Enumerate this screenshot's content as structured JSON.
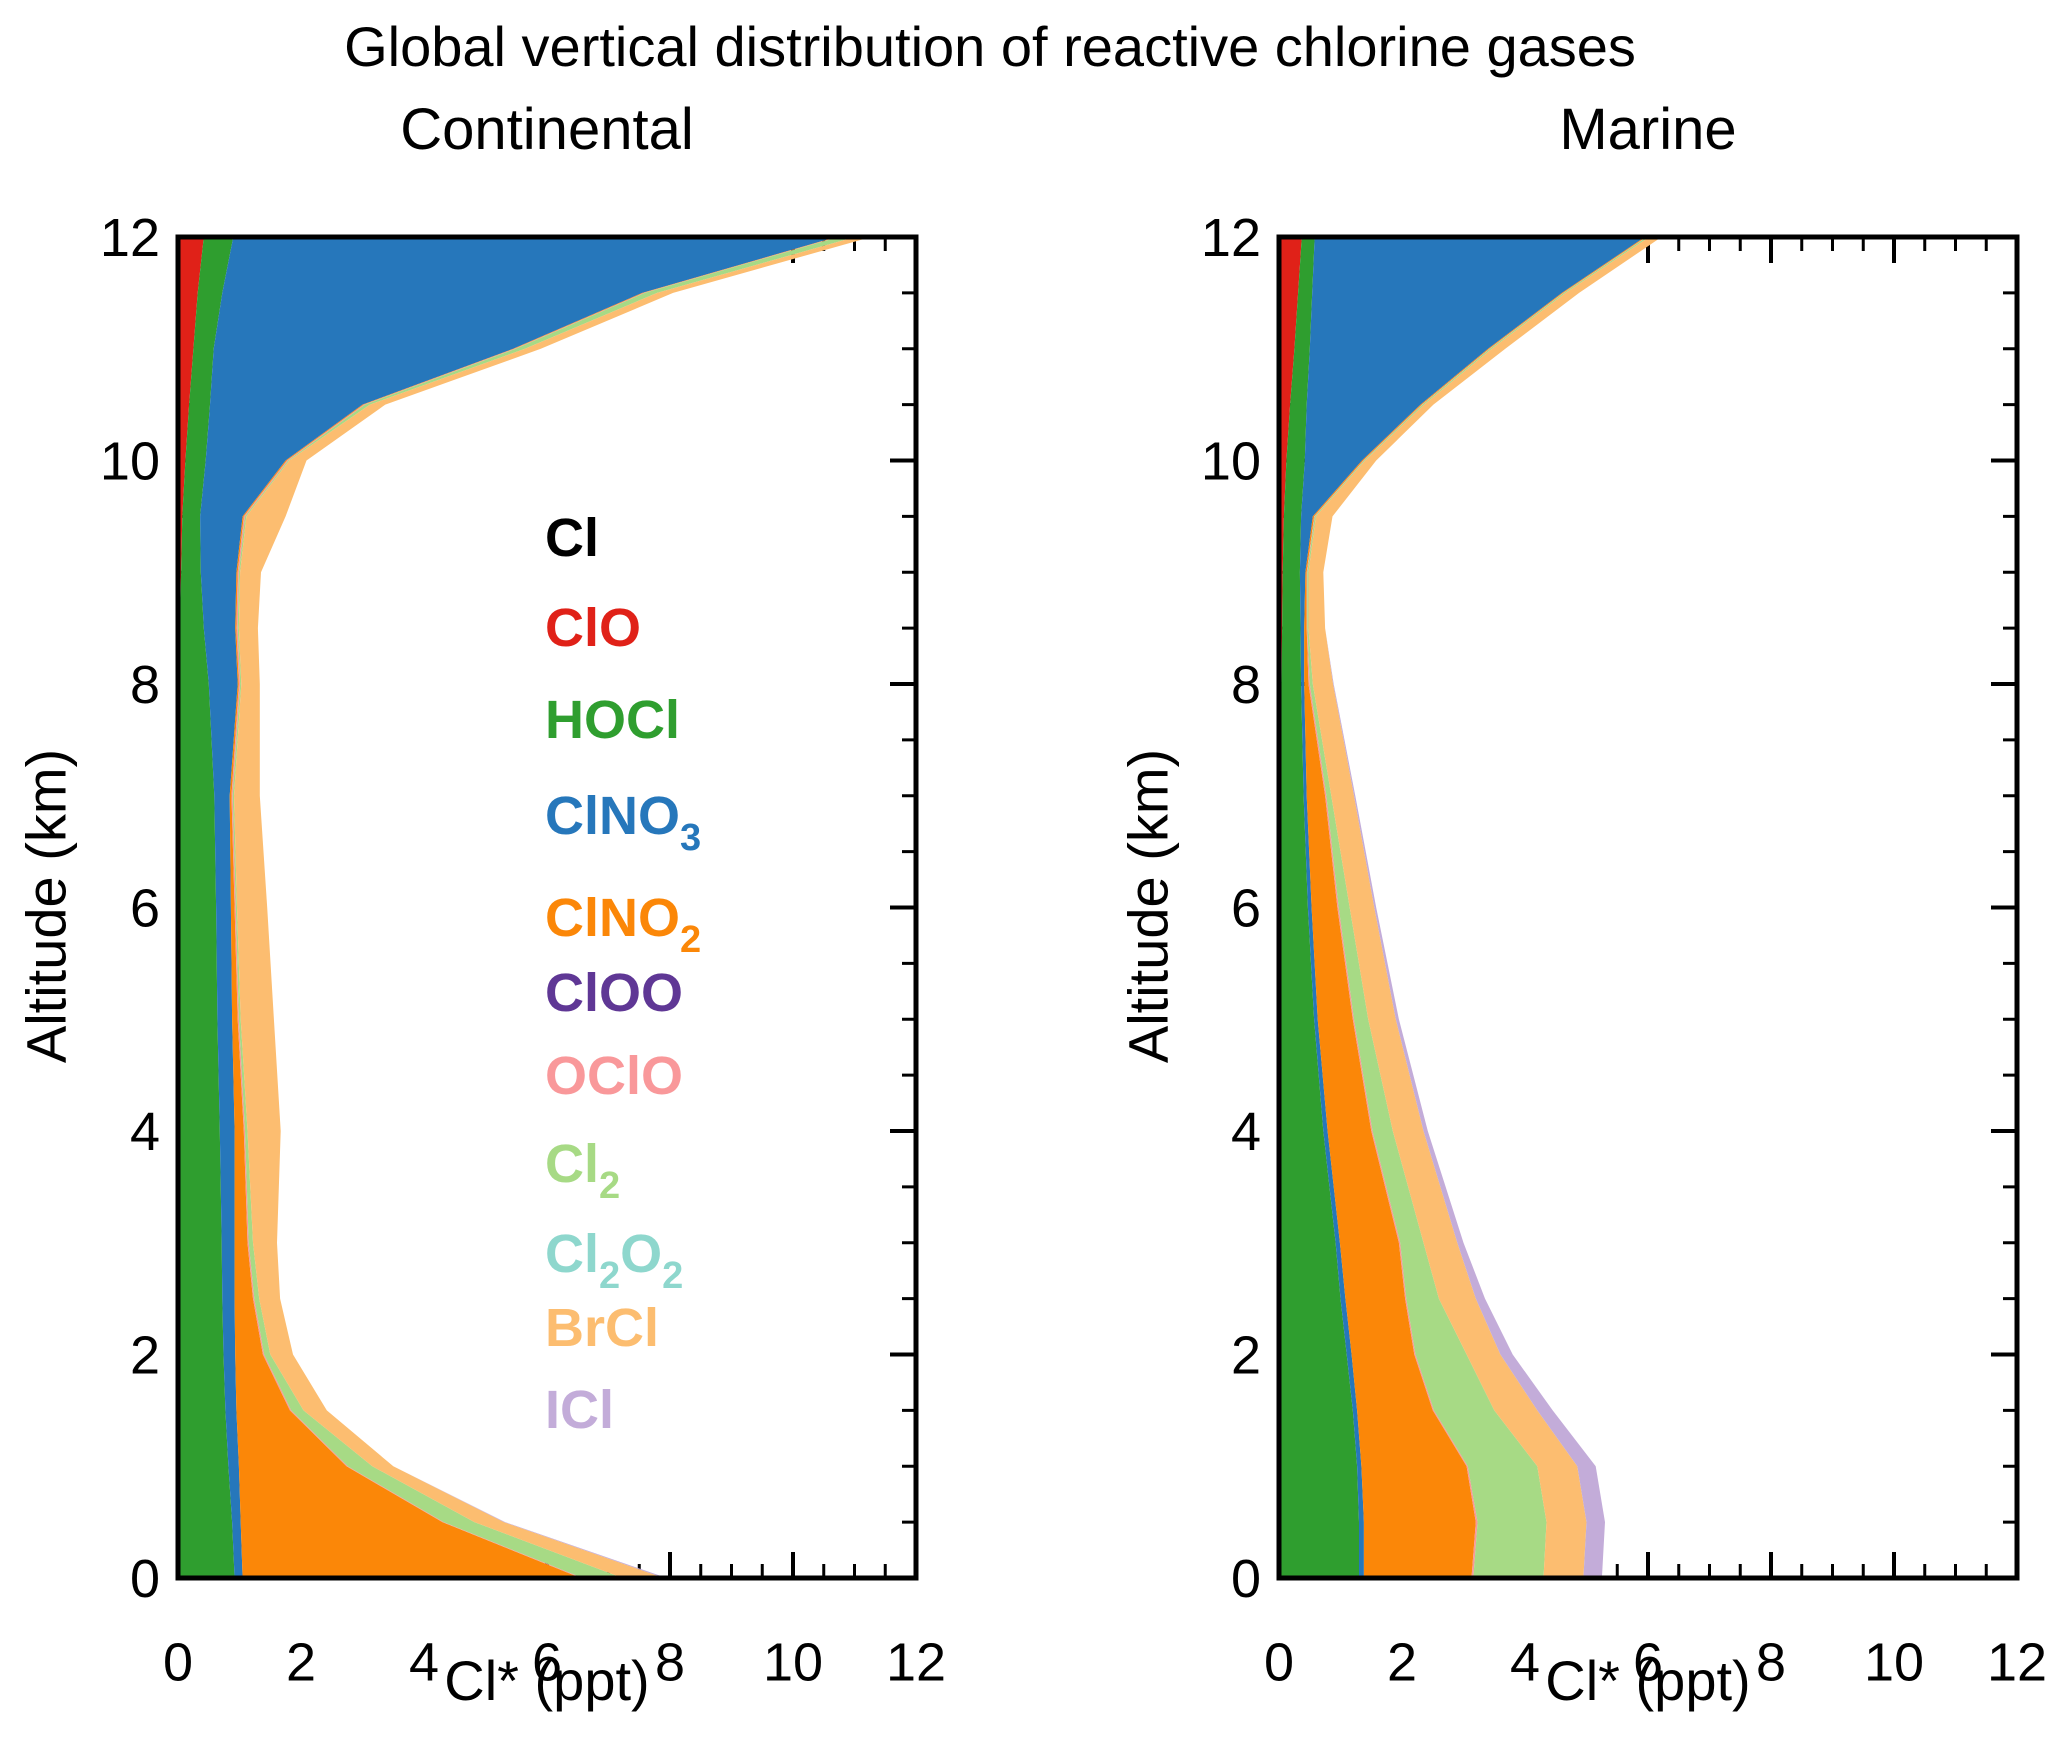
{
  "title": "Global vertical distribution of reactive chlorine gases",
  "panels": [
    {
      "title": "Continental",
      "xlabel": "Cl* (ppt)",
      "ylabel": "Altitude (km)"
    },
    {
      "title": "Marine",
      "xlabel": "Cl* (ppt)",
      "ylabel": "Altitude (km)"
    }
  ],
  "axes": {
    "x_range": [
      0,
      12
    ],
    "y_range": [
      0,
      12
    ],
    "x_major_ticks": [
      0,
      2,
      4,
      6,
      8,
      10,
      12
    ],
    "y_major_ticks": [
      0,
      2,
      4,
      6,
      8,
      10,
      12
    ],
    "minor_tick_step": 0.5,
    "grid": false,
    "frame": true
  },
  "legend": {
    "items": [
      {
        "name": "Cl",
        "color": "#000000",
        "segments": [
          {
            "t": "Cl"
          }
        ]
      },
      {
        "name": "ClO",
        "color": "#e02118",
        "segments": [
          {
            "t": "ClO"
          }
        ]
      },
      {
        "name": "HOCl",
        "color": "#2f9e2f",
        "segments": [
          {
            "t": "HOCl"
          }
        ]
      },
      {
        "name": "ClNO3",
        "color": "#2677bb",
        "segments": [
          {
            "t": "ClNO"
          },
          {
            "s": "3"
          }
        ]
      },
      {
        "name": "ClNO2",
        "color": "#fb8708",
        "segments": [
          {
            "t": "ClNO"
          },
          {
            "s": "2"
          }
        ]
      },
      {
        "name": "ClOO",
        "color": "#5f3795",
        "segments": [
          {
            "t": "ClOO"
          }
        ]
      },
      {
        "name": "OClO",
        "color": "#f9989a",
        "segments": [
          {
            "t": "OClO"
          }
        ]
      },
      {
        "name": "Cl2",
        "color": "#a7da85",
        "segments": [
          {
            "t": "Cl"
          },
          {
            "s": "2"
          }
        ]
      },
      {
        "name": "Cl2O2",
        "color": "#8ed7cd",
        "segments": [
          {
            "t": "Cl"
          },
          {
            "s": "2"
          },
          {
            "t": "O"
          },
          {
            "s": "2"
          }
        ]
      },
      {
        "name": "BrCl",
        "color": "#fcbd70",
        "segments": [
          {
            "t": "BrCl"
          }
        ]
      },
      {
        "name": "ICl",
        "color": "#c3acd9",
        "segments": [
          {
            "t": "ICl"
          }
        ]
      }
    ]
  },
  "chart_data": [
    {
      "type": "area",
      "stacked": true,
      "orientation": "horizontal",
      "title": "Continental",
      "xlabel": "Cl* (ppt)",
      "ylabel": "Altitude (km)",
      "xlim": [
        0,
        12
      ],
      "ylim": [
        0,
        12
      ],
      "altitudes_km": [
        0,
        0.5,
        1,
        1.5,
        2,
        2.5,
        3,
        4,
        5,
        6,
        7,
        8,
        8.5,
        9,
        9.5,
        10,
        10.5,
        11,
        11.5,
        12
      ],
      "series": [
        {
          "name": "Cl",
          "color": "#000000",
          "values": [
            0,
            0,
            0,
            0,
            0,
            0,
            0,
            0,
            0,
            0,
            0,
            0,
            0,
            0,
            0,
            0,
            0,
            0,
            0,
            0
          ]
        },
        {
          "name": "ClO",
          "color": "#e02118",
          "values": [
            0.04,
            0.04,
            0.03,
            0.03,
            0.03,
            0.03,
            0.03,
            0.03,
            0.03,
            0.03,
            0.03,
            0.03,
            0.03,
            0.05,
            0.07,
            0.12,
            0.18,
            0.25,
            0.32,
            0.42
          ]
        },
        {
          "name": "HOCl",
          "color": "#2f9e2f",
          "values": [
            0.88,
            0.84,
            0.79,
            0.74,
            0.71,
            0.69,
            0.68,
            0.65,
            0.61,
            0.59,
            0.56,
            0.47,
            0.39,
            0.32,
            0.29,
            0.33,
            0.34,
            0.33,
            0.4,
            0.48
          ]
        },
        {
          "name": "ClNO3",
          "color": "#2677bb",
          "values": [
            0.13,
            0.14,
            0.17,
            0.18,
            0.19,
            0.2,
            0.21,
            0.24,
            0.24,
            0.24,
            0.25,
            0.47,
            0.51,
            0.58,
            0.69,
            1.3,
            2.48,
            4.87,
            6.83,
            9.8
          ]
        },
        {
          "name": "ClNO2",
          "color": "#fb8708",
          "values": [
            5.5,
            3.28,
            1.75,
            0.87,
            0.45,
            0.3,
            0.21,
            0.15,
            0.09,
            0.06,
            0.03,
            0.02,
            0.02,
            0.02,
            0.02,
            0.02,
            0.02,
            0.02,
            0.02,
            0.02
          ]
        },
        {
          "name": "ClOO",
          "color": "#5f3795",
          "values": [
            0,
            0,
            0,
            0,
            0,
            0,
            0,
            0,
            0,
            0,
            0,
            0,
            0,
            0,
            0,
            0,
            0,
            0,
            0,
            0
          ]
        },
        {
          "name": "OClO",
          "color": "#f9989a",
          "values": [
            0.03,
            0.02,
            0.02,
            0.02,
            0.02,
            0.02,
            0.02,
            0.02,
            0.02,
            0.02,
            0.02,
            0.02,
            0.02,
            0.02,
            0.02,
            0.02,
            0.02,
            0.02,
            0.02,
            0.02
          ]
        },
        {
          "name": "Cl2",
          "color": "#a7da85",
          "values": [
            0.65,
            0.5,
            0.4,
            0.2,
            0.1,
            0.08,
            0.07,
            0.04,
            0.03,
            0.02,
            0.02,
            0.02,
            0.02,
            0.02,
            0.02,
            0.02,
            0.08,
            0.15,
            0.2,
            0.27
          ]
        },
        {
          "name": "Cl2O2",
          "color": "#8ed7cd",
          "values": [
            0,
            0,
            0,
            0,
            0,
            0,
            0,
            0,
            0,
            0,
            0,
            0,
            0,
            0,
            0,
            0,
            0,
            0,
            0,
            0
          ]
        },
        {
          "name": "BrCl",
          "color": "#fcbd70",
          "values": [
            0.67,
            0.48,
            0.34,
            0.38,
            0.37,
            0.34,
            0.39,
            0.54,
            0.54,
            0.49,
            0.42,
            0.3,
            0.31,
            0.34,
            0.64,
            0.28,
            0.25,
            0.26,
            0.26,
            0.26
          ]
        },
        {
          "name": "ICl",
          "color": "#c3acd9",
          "values": [
            0.05,
            0.02,
            0,
            0,
            0,
            0,
            0,
            0,
            0,
            0,
            0,
            0,
            0,
            0,
            0,
            0,
            0,
            0,
            0,
            0
          ]
        }
      ]
    },
    {
      "type": "area",
      "stacked": true,
      "orientation": "horizontal",
      "title": "Marine",
      "xlabel": "Cl* (ppt)",
      "ylabel": "Altitude (km)",
      "xlim": [
        0,
        12
      ],
      "ylim": [
        0,
        12
      ],
      "altitudes_km": [
        0,
        0.5,
        1,
        1.5,
        2,
        2.5,
        3,
        4,
        5,
        6,
        7,
        8,
        8.5,
        9,
        9.5,
        10,
        10.5,
        11,
        11.5,
        12
      ],
      "series": [
        {
          "name": "Cl",
          "color": "#000000",
          "values": [
            0,
            0,
            0,
            0,
            0,
            0,
            0,
            0,
            0,
            0,
            0,
            0,
            0,
            0,
            0,
            0,
            0,
            0,
            0,
            0
          ]
        },
        {
          "name": "ClO",
          "color": "#e02118",
          "values": [
            0.04,
            0.04,
            0.03,
            0.03,
            0.03,
            0.03,
            0.03,
            0.03,
            0.03,
            0.03,
            0.03,
            0.04,
            0.05,
            0.06,
            0.08,
            0.12,
            0.18,
            0.25,
            0.31,
            0.37
          ]
        },
        {
          "name": "HOCl",
          "color": "#2f9e2f",
          "values": [
            1.26,
            1.26,
            1.24,
            1.17,
            1.07,
            0.97,
            0.89,
            0.69,
            0.54,
            0.44,
            0.37,
            0.32,
            0.3,
            0.28,
            0.28,
            0.3,
            0.27,
            0.25,
            0.23,
            0.21
          ]
        },
        {
          "name": "ClNO3",
          "color": "#2677bb",
          "values": [
            0.08,
            0.08,
            0.07,
            0.07,
            0.08,
            0.08,
            0.07,
            0.07,
            0.06,
            0.06,
            0.05,
            0.05,
            0.06,
            0.09,
            0.19,
            0.93,
            1.85,
            2.9,
            4.06,
            5.37
          ]
        },
        {
          "name": "ClNO2",
          "color": "#fb8708",
          "values": [
            1.75,
            1.82,
            1.71,
            1.23,
            1.02,
            0.97,
            0.96,
            0.71,
            0.57,
            0.42,
            0.3,
            0.07,
            0.04,
            0.02,
            0.02,
            0.02,
            0.02,
            0.02,
            0.02,
            0.02
          ]
        },
        {
          "name": "ClOO",
          "color": "#5f3795",
          "values": [
            0,
            0,
            0,
            0,
            0,
            0,
            0,
            0,
            0,
            0,
            0,
            0,
            0,
            0,
            0,
            0,
            0,
            0,
            0,
            0
          ]
        },
        {
          "name": "OClO",
          "color": "#f9989a",
          "values": [
            0.03,
            0.03,
            0.02,
            0.02,
            0.02,
            0.02,
            0.02,
            0.02,
            0.02,
            0.02,
            0.02,
            0.02,
            0.01,
            0.01,
            0.01,
            0.01,
            0.01,
            0.01,
            0.01,
            0.01
          ]
        },
        {
          "name": "Cl2",
          "color": "#a7da85",
          "values": [
            1.14,
            1.12,
            1.13,
            0.98,
            0.83,
            0.53,
            0.38,
            0.33,
            0.23,
            0.18,
            0.08,
            0.05,
            0.02,
            0.02,
            0.02,
            0.02,
            0.03,
            0.03,
            0.03,
            0.04
          ]
        },
        {
          "name": "Cl2O2",
          "color": "#8ed7cd",
          "values": [
            0,
            0,
            0,
            0,
            0,
            0,
            0,
            0,
            0,
            0,
            0,
            0,
            0,
            0,
            0,
            0,
            0,
            0,
            0,
            0
          ]
        },
        {
          "name": "BrCl",
          "color": "#fcbd70",
          "values": [
            0.65,
            0.65,
            0.65,
            0.7,
            0.55,
            0.6,
            0.55,
            0.5,
            0.45,
            0.4,
            0.37,
            0.33,
            0.27,
            0.24,
            0.27,
            0.18,
            0.15,
            0.22,
            0.22,
            0.2
          ]
        },
        {
          "name": "ICl",
          "color": "#c3acd9",
          "values": [
            0.3,
            0.3,
            0.3,
            0.25,
            0.2,
            0.15,
            0.1,
            0.07,
            0.05,
            0.03,
            0.02,
            0.01,
            0,
            0,
            0,
            0,
            0,
            0,
            0,
            0
          ]
        }
      ]
    }
  ]
}
